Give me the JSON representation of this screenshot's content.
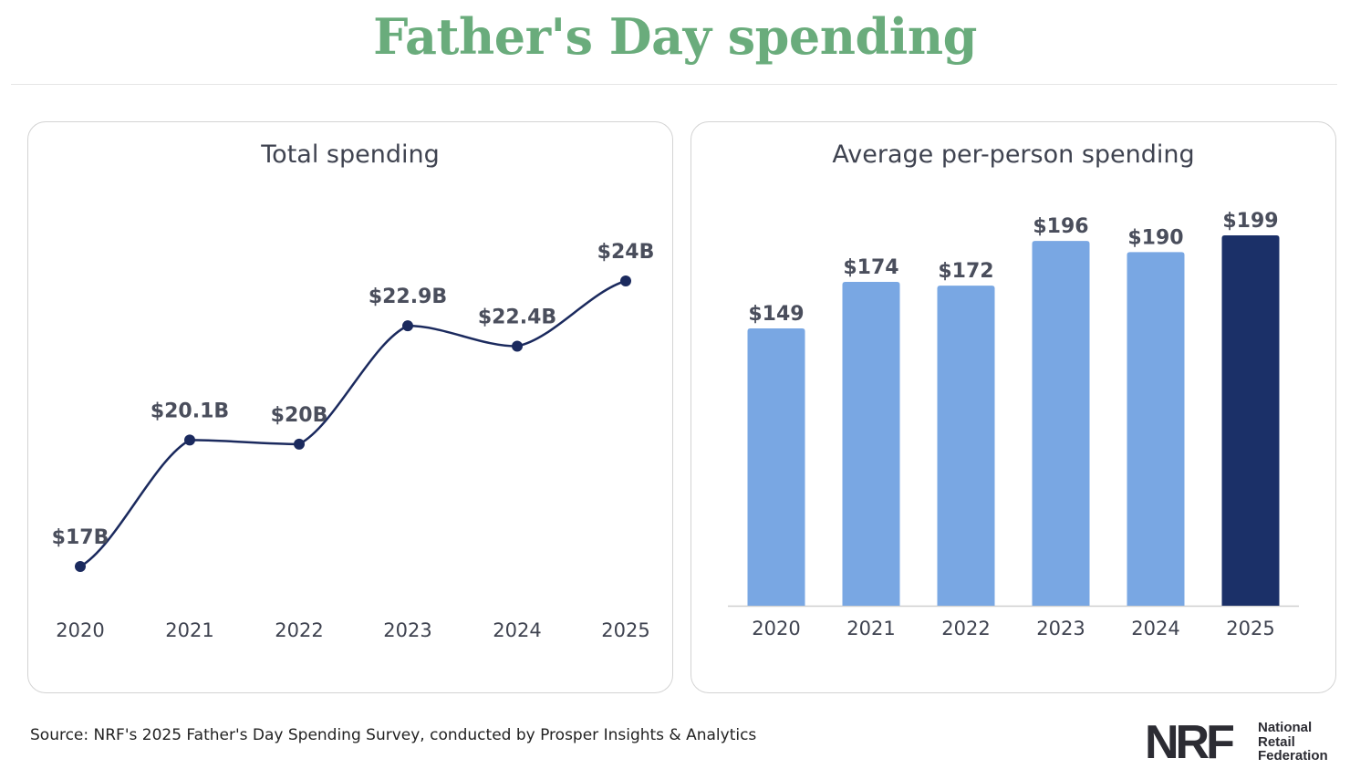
{
  "header": {
    "title": "Father's Day spending"
  },
  "panels": {
    "left_title": "Total spending",
    "right_title": "Average per-person spending"
  },
  "chart_data": [
    {
      "type": "line",
      "title": "Total spending",
      "x": [
        "2020",
        "2021",
        "2022",
        "2023",
        "2024",
        "2025"
      ],
      "values": [
        17,
        20.1,
        20,
        22.9,
        22.4,
        24
      ],
      "value_labels": [
        "$17B",
        "$20.1B",
        "$20B",
        "$22.9B",
        "$22.4B",
        "$24B"
      ],
      "unit": "billion USD",
      "color": "#1b2a5e",
      "smooth": true
    },
    {
      "type": "bar",
      "title": "Average per-person spending",
      "categories": [
        "2020",
        "2021",
        "2022",
        "2023",
        "2024",
        "2025"
      ],
      "values": [
        149,
        174,
        172,
        196,
        190,
        199
      ],
      "value_labels": [
        "$149",
        "$174",
        "$172",
        "$196",
        "$190",
        "$199"
      ],
      "unit": "USD",
      "ylim": [
        0,
        199
      ],
      "bar_color": "#79a7e3",
      "highlight_color": "#1b3068",
      "highlight_index": 5
    }
  ],
  "footer": {
    "source": "Source: NRF's 2025 Father's Day Spending Survey, conducted by Prosper Insights & Analytics"
  },
  "logo": {
    "mark": "NRF",
    "lines": [
      "National",
      "Retail",
      "Federation"
    ]
  },
  "colors": {
    "title_green": "#6aac7c",
    "text_gray": "#3f4350",
    "panel_border": "#d3d3d3"
  }
}
